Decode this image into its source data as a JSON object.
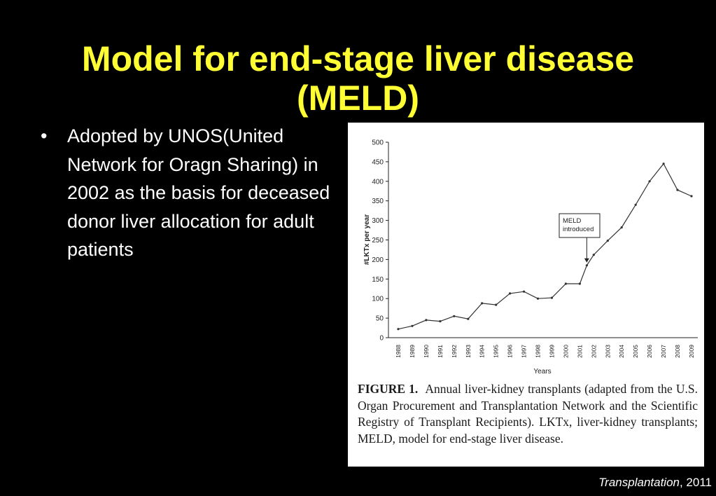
{
  "slide": {
    "title_lines": [
      "Model for end-stage liver disease",
      "(MELD)"
    ],
    "bullets": [
      "Adopted by UNOS(United Network for Oragn Sharing) in 2002 as the basis for deceased donor liver allocation for adult patients"
    ],
    "citation": {
      "journal": "Transplantation",
      "rest": ", 2011"
    }
  },
  "colors": {
    "title": "#ffff33",
    "background": "#000000",
    "text": "#ffffff",
    "line": "#333333"
  },
  "chart_data": {
    "type": "line",
    "xlabel": "Years",
    "ylabel": "#LKTx per year",
    "ylim": [
      0,
      500
    ],
    "yticks": [
      0,
      50,
      100,
      150,
      200,
      250,
      300,
      350,
      400,
      450,
      500
    ],
    "x_tick_labels": [
      "1988",
      "1989",
      "1990",
      "1991",
      "1992",
      "1993",
      "1994",
      "1995",
      "1996",
      "1997",
      "1998",
      "1999",
      "2000",
      "2001",
      "2002",
      "2003",
      "2004",
      "2005",
      "2006",
      "2007",
      "2008",
      "2009"
    ],
    "x": [
      1988,
      1989,
      1990,
      1991,
      1992,
      1993,
      1994,
      1995,
      1996,
      1997,
      1998,
      1999,
      2000,
      2001,
      2001.5,
      2002,
      2003,
      2004,
      2005,
      2006,
      2007,
      2008,
      2009
    ],
    "y": [
      22,
      30,
      45,
      42,
      55,
      48,
      88,
      84,
      113,
      118,
      100,
      102,
      138,
      138,
      185,
      212,
      248,
      282,
      340,
      400,
      445,
      378,
      362
    ],
    "grid": false,
    "annotation": {
      "text": [
        "MELD",
        "introduced"
      ],
      "x": 2001.5,
      "y": 185
    }
  },
  "caption": {
    "label": "FIGURE 1.",
    "text": "Annual liver-kidney transplants (adapted from the U.S. Organ Procurement and Transplantation Network and the Scientific Registry of Transplant Recipients). LKTx, liver-kidney transplants; MELD, model for end-stage liver disease."
  }
}
